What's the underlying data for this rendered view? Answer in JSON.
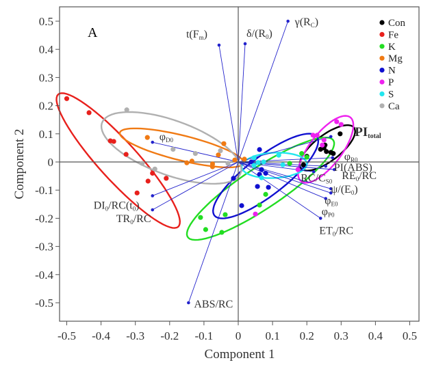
{
  "chart_data": {
    "type": "scatter",
    "subtype": "pca-biplot",
    "panel_label": "A",
    "xlabel": "Component 1",
    "ylabel": "Component 2",
    "xlim": [
      -0.55,
      0.55
    ],
    "ylim": [
      -0.56,
      0.55
    ],
    "xticks": [
      "-0.5",
      "-0.4",
      "-0.3",
      "-0.2",
      "-0.1",
      "0",
      "0.1",
      "0.2",
      "0.3",
      "0.4",
      "0.5"
    ],
    "yticks": [
      "0.5",
      "0.4",
      "0.3",
      "0.2",
      "0.1",
      "0",
      "-0.1",
      "-0.2",
      "-0.3",
      "-0.4",
      "-0.5"
    ],
    "grid": false,
    "legend_position": "top-right",
    "vector_color": "#2222cc",
    "series": [
      {
        "name": "Con",
        "color": "#000000",
        "points": [
          [
            0.297,
            0.1
          ],
          [
            0.253,
            0.06
          ],
          [
            0.25,
            0.05
          ],
          [
            0.257,
            0.037
          ],
          [
            0.27,
            0.034
          ],
          [
            0.277,
            0.03
          ],
          [
            0.2,
            0.02
          ],
          [
            0.19,
            -0.01
          ],
          [
            0.24,
            0.045
          ]
        ],
        "ellipse": {
          "center": [
            0.26,
            0.05
          ],
          "axis1": [
            0.075,
            0.075
          ],
          "axis2": [
            0.03,
            -0.03
          ]
        }
      },
      {
        "name": "Fe",
        "color": "#e8201c",
        "points": [
          [
            -0.5,
            0.225
          ],
          [
            -0.435,
            0.175
          ],
          [
            -0.373,
            0.075
          ],
          [
            -0.363,
            0.073
          ],
          [
            -0.327,
            0.027
          ],
          [
            -0.25,
            -0.04
          ],
          [
            -0.263,
            -0.068
          ],
          [
            -0.21,
            -0.058
          ],
          [
            -0.295,
            -0.11
          ]
        ],
        "ellipse": {
          "center": [
            -0.35,
            0.005
          ],
          "axis1": [
            0.175,
            -0.235
          ],
          "axis2": [
            0.042,
            0.046
          ]
        }
      },
      {
        "name": "K",
        "color": "#22dd22",
        "points": [
          [
            -0.11,
            -0.197
          ],
          [
            -0.038,
            -0.187
          ],
          [
            -0.095,
            -0.24
          ],
          [
            -0.048,
            -0.25
          ],
          [
            0.062,
            -0.153
          ],
          [
            0.08,
            -0.115
          ],
          [
            0.15,
            -0.005
          ],
          [
            0.2,
            0.017
          ],
          [
            0.185,
            0.03
          ]
        ],
        "ellipse": {
          "center": [
            0.065,
            -0.095
          ],
          "axis1": [
            0.21,
            0.175
          ],
          "axis2": [
            -0.045,
            0.05
          ]
        }
      },
      {
        "name": "Mg",
        "color": "#f07a14",
        "points": [
          [
            -0.265,
            0.087
          ],
          [
            -0.042,
            0.065
          ],
          [
            -0.058,
            0.025
          ],
          [
            -0.15,
            -0.003
          ],
          [
            -0.135,
            0.003
          ],
          [
            -0.075,
            -0.007
          ],
          [
            -0.075,
            -0.017
          ],
          [
            -0.01,
            0.007
          ],
          [
            0.018,
            0.01
          ]
        ],
        "ellipse": {
          "center": [
            -0.165,
            0.05
          ],
          "axis1": [
            0.18,
            -0.055
          ],
          "axis2": [
            0.012,
            0.042
          ]
        }
      },
      {
        "name": "N",
        "color": "#1010d0",
        "points": [
          [
            0.062,
            0.044
          ],
          [
            0.068,
            -0.027
          ],
          [
            0.08,
            -0.04
          ],
          [
            0.062,
            -0.044
          ],
          [
            0.056,
            -0.087
          ],
          [
            0.088,
            -0.09
          ],
          [
            0.01,
            -0.155
          ],
          [
            -0.014,
            -0.058
          ],
          [
            0.038,
            0.0
          ]
        ],
        "ellipse": {
          "center": [
            0.08,
            -0.05
          ],
          "axis1": [
            0.145,
            0.145
          ],
          "axis2": [
            -0.05,
            0.04
          ]
        }
      },
      {
        "name": "P",
        "color": "#ee22ee",
        "points": [
          [
            0.287,
            0.143
          ],
          [
            0.3,
            0.133
          ],
          [
            0.218,
            0.095
          ],
          [
            0.23,
            0.095
          ],
          [
            0.25,
            0.078
          ],
          [
            0.245,
            0.06
          ],
          [
            0.174,
            -0.027
          ],
          [
            0.05,
            -0.185
          ]
        ],
        "ellipse": {
          "center": [
            0.255,
            0.045
          ],
          "axis1": [
            0.07,
            0.115
          ],
          "axis2": [
            0.04,
            -0.03
          ]
        }
      },
      {
        "name": "S",
        "color": "#22e6ee",
        "points": [
          [
            0.046,
            0.015
          ],
          [
            0.118,
            0.024
          ],
          [
            0.074,
            0.0
          ],
          [
            0.058,
            -0.002
          ],
          [
            0.046,
            -0.012
          ],
          [
            0.068,
            -0.056
          ],
          [
            0.13,
            -0.01
          ]
        ],
        "ellipse": {
          "center": [
            0.105,
            -0.012
          ],
          "axis1": [
            0.095,
            0.005
          ],
          "axis2": [
            0.0,
            0.045
          ]
        }
      },
      {
        "name": "Ca",
        "color": "#b0b0b0",
        "points": [
          [
            -0.325,
            0.185
          ],
          [
            -0.28,
            -0.005
          ],
          [
            -0.243,
            -0.025
          ],
          [
            -0.19,
            0.045
          ],
          [
            -0.125,
            0.03
          ],
          [
            -0.052,
            0.04
          ],
          [
            -0.03,
            -0.005
          ]
        ],
        "ellipse": {
          "center": [
            -0.195,
            0.05
          ],
          "axis1": [
            0.2,
            -0.095
          ],
          "axis2": [
            0.04,
            0.085
          ]
        }
      }
    ],
    "loadings": [
      {
        "label": [
          [
            "t(F",
            ""
          ],
          [
            "m",
            "sub"
          ],
          [
            ")",
            ""
          ]
        ],
        "x": -0.056,
        "y": 0.415
      },
      {
        "label": [
          [
            "δ/(R",
            ""
          ],
          [
            "0",
            "sub"
          ],
          [
            ")",
            ""
          ]
        ],
        "x": 0.02,
        "y": 0.42
      },
      {
        "label": [
          [
            "γ(R",
            ""
          ],
          [
            "C",
            "sub"
          ],
          [
            ")",
            ""
          ]
        ],
        "x": 0.145,
        "y": 0.5
      },
      {
        "label": [
          [
            "φ",
            ""
          ],
          [
            "D0",
            "sub"
          ]
        ],
        "x": -0.25,
        "y": 0.07
      },
      {
        "label": [
          [
            "DI",
            ""
          ],
          [
            "0",
            "sub"
          ],
          [
            "/RC(t",
            ""
          ],
          [
            "0",
            "sub"
          ],
          [
            ")",
            ""
          ]
        ],
        "x": -0.25,
        "y": -0.12
      },
      {
        "label": [
          [
            "TR",
            ""
          ],
          [
            "0",
            "sub"
          ],
          [
            "/RC",
            ""
          ]
        ],
        "x": -0.25,
        "y": -0.17
      },
      {
        "label": [
          [
            "ABS/RC",
            ""
          ]
        ],
        "x": -0.145,
        "y": -0.5
      },
      {
        "label": [
          [
            "PI",
            ""
          ],
          [
            "total",
            "sub"
          ]
        ],
        "x": 0.27,
        "y": 0.09
      },
      {
        "label": [
          [
            "φ",
            ""
          ],
          [
            "R0",
            "sub"
          ]
        ],
        "x": 0.275,
        "y": 0.015
      },
      {
        "label": [
          [
            "PI(ABS)",
            ""
          ]
        ],
        "x": 0.255,
        "y": -0.015
      },
      {
        "label": [
          [
            "RE",
            ""
          ],
          [
            "0",
            "sub"
          ],
          [
            "/RC",
            ""
          ]
        ],
        "x": 0.28,
        "y": -0.027
      },
      {
        "label": [
          [
            "RC/C",
            ""
          ],
          [
            "S0",
            "sub"
          ]
        ],
        "x": 0.22,
        "y": -0.035
      },
      {
        "label": [
          [
            "ψ/(E",
            ""
          ],
          [
            "0",
            "sub"
          ],
          [
            ")",
            ""
          ]
        ],
        "x": 0.27,
        "y": -0.095
      },
      {
        "label": [
          [
            "φ",
            ""
          ],
          [
            "E0",
            "sub"
          ]
        ],
        "x": 0.27,
        "y": -0.11
      },
      {
        "label": [
          [
            "φ",
            ""
          ],
          [
            "P0",
            "sub"
          ]
        ],
        "x": 0.255,
        "y": -0.13
      },
      {
        "label": [
          [
            "ET",
            ""
          ],
          [
            "0",
            "sub"
          ],
          [
            "/RC",
            ""
          ]
        ],
        "x": 0.24,
        "y": -0.2
      }
    ]
  }
}
